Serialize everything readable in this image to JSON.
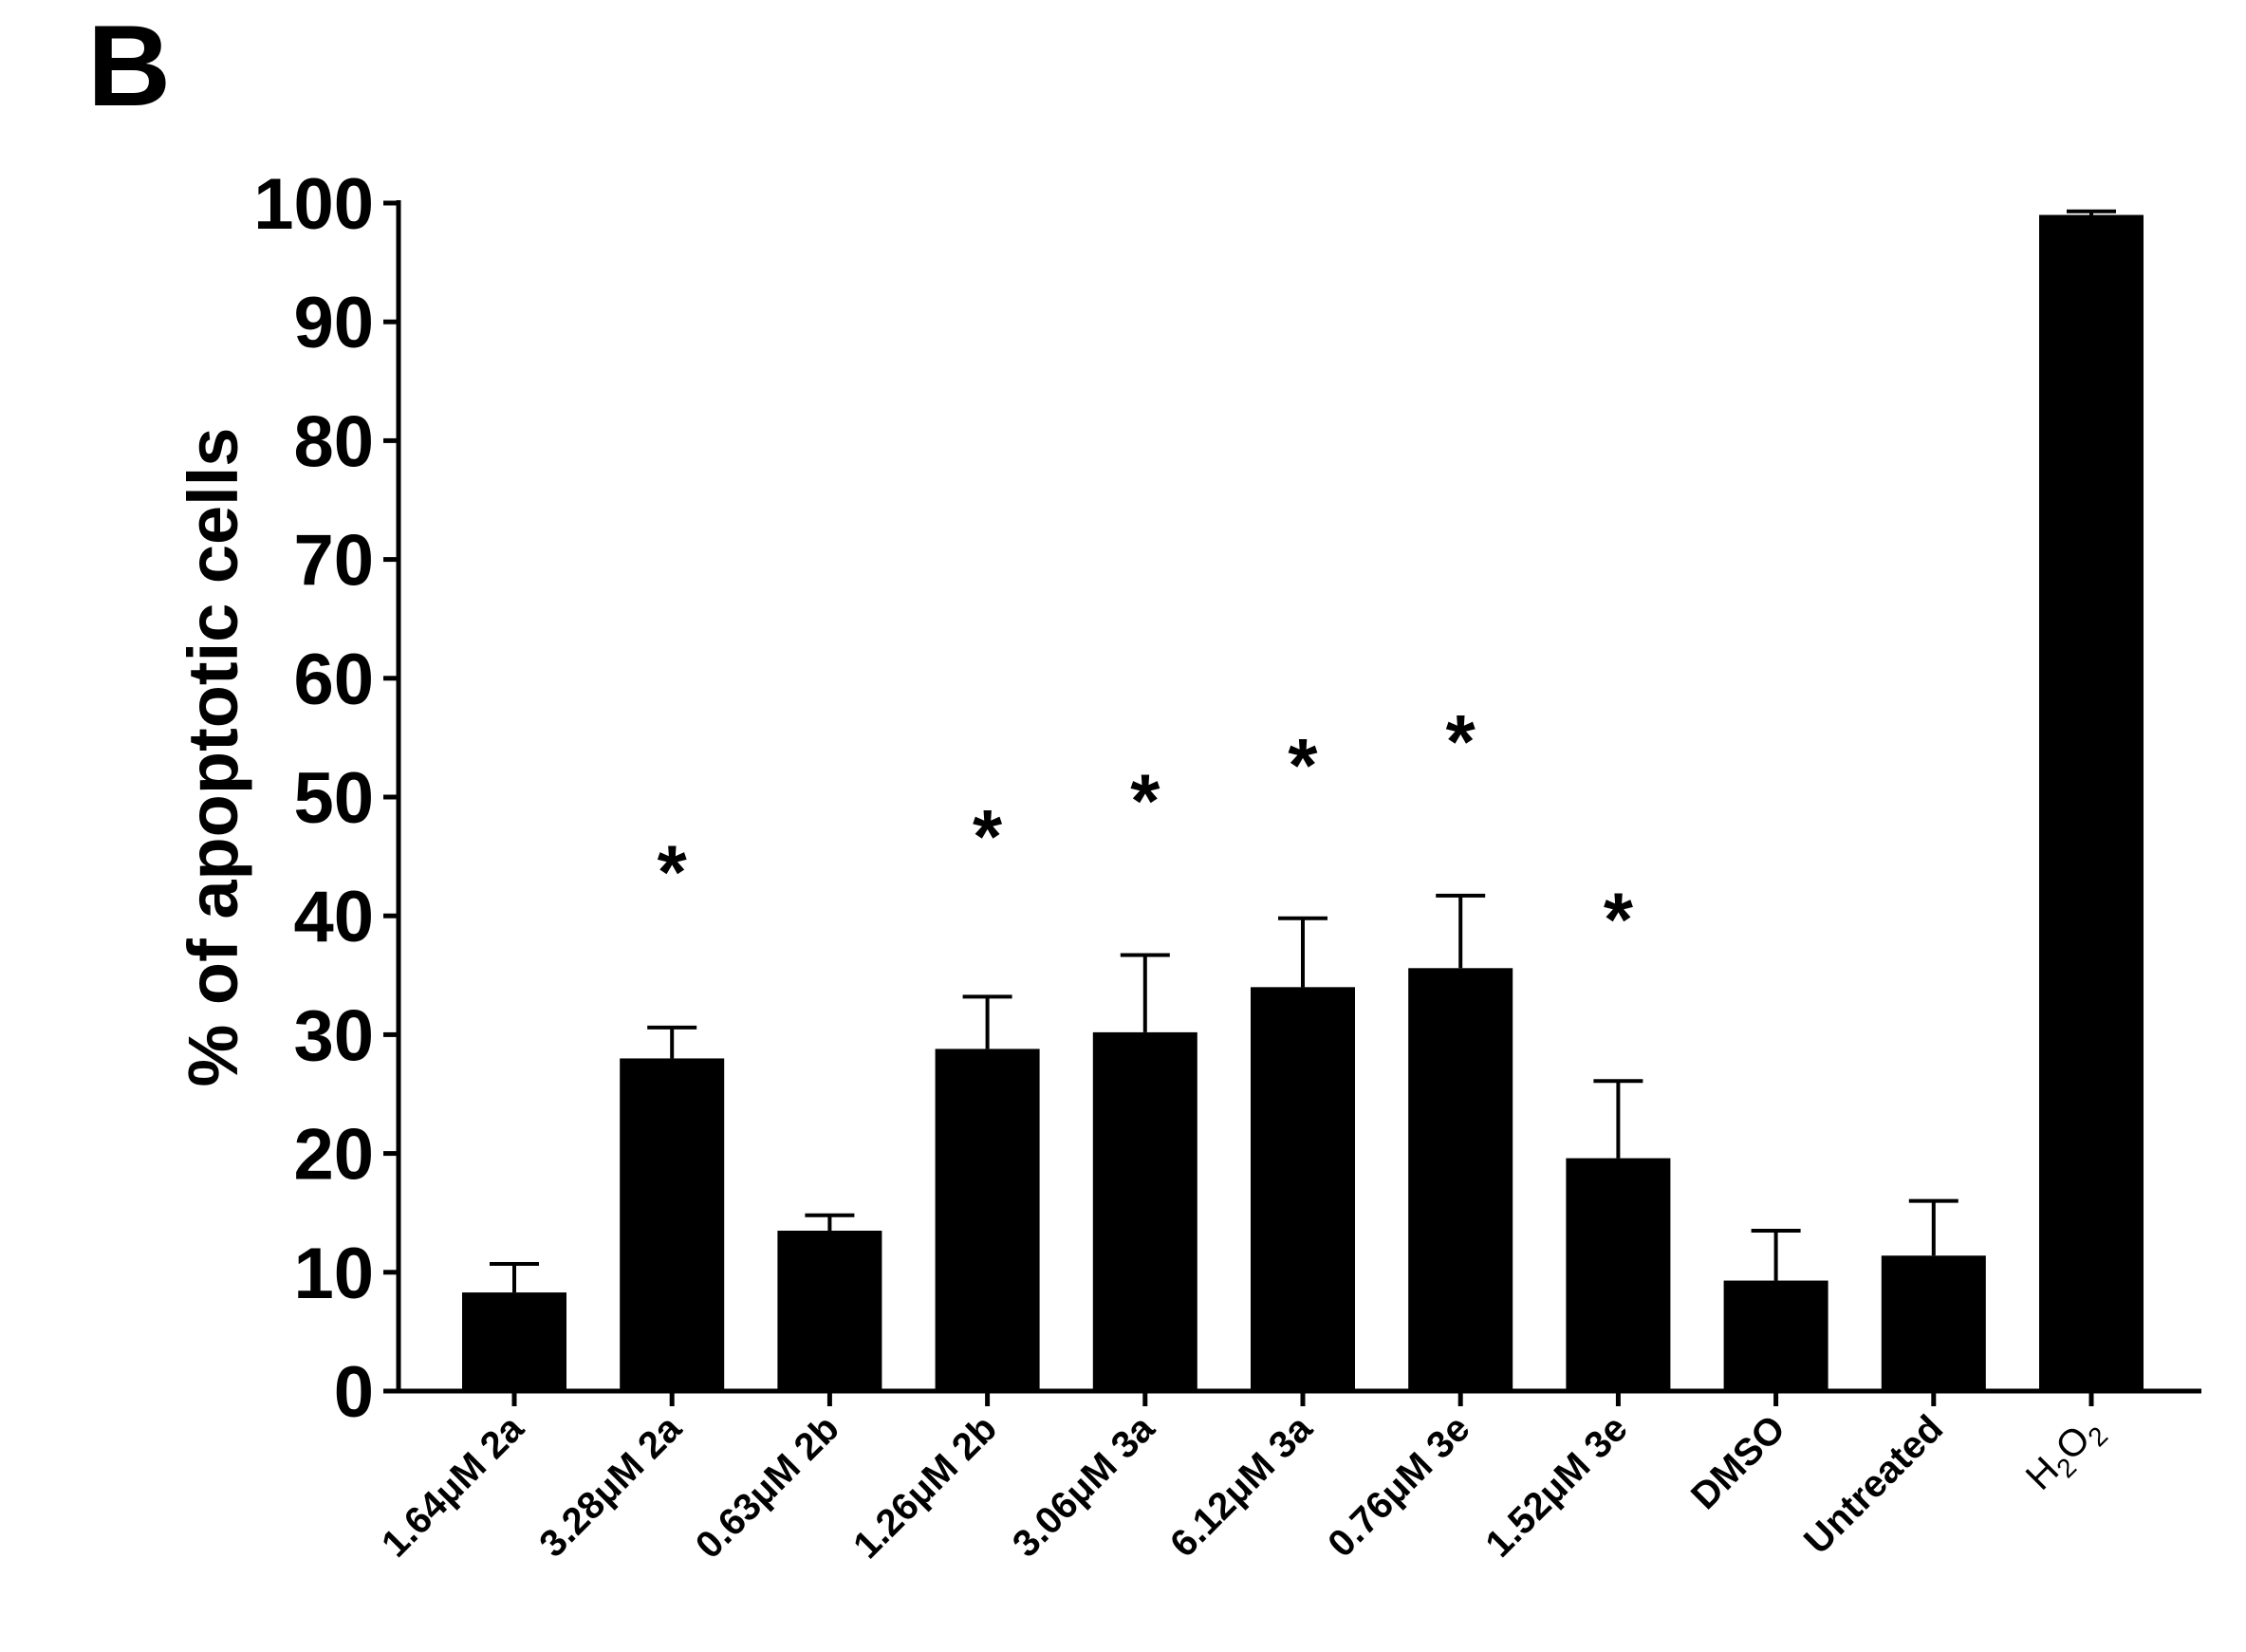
{
  "panel_label": "B",
  "chart_data": {
    "type": "bar",
    "title": "",
    "xlabel": "",
    "ylabel": "% of apoptotic cells",
    "ylim": [
      0,
      100
    ],
    "yticks": [
      0,
      10,
      20,
      30,
      40,
      50,
      60,
      70,
      80,
      90,
      100
    ],
    "grid": false,
    "legend": "none",
    "bar_color": "#000000",
    "categories": [
      {
        "label": "1.64μM 2a"
      },
      {
        "label": "3.28μM 2a"
      },
      {
        "label": "0.63μM 2b"
      },
      {
        "label": "1.26μM 2b"
      },
      {
        "label": "3.06μM 3a"
      },
      {
        "label": "6.12μM 3a"
      },
      {
        "label": "0.76μM 3e"
      },
      {
        "label": "1.52μM 3e"
      },
      {
        "label": "DMSO"
      },
      {
        "label": "Untreated"
      },
      {
        "label": "H2O2",
        "base": "H",
        "sub1": "2",
        "mid": "O",
        "sub2": "2"
      }
    ],
    "values": [
      8.3,
      28.0,
      13.5,
      28.8,
      30.2,
      34.0,
      35.6,
      19.6,
      9.3,
      11.4,
      99.0
    ],
    "error_upper": [
      10.7,
      30.6,
      14.8,
      33.2,
      36.7,
      39.8,
      41.7,
      26.1,
      13.5,
      16.0,
      99.3
    ],
    "annotations": [
      "",
      "*",
      "",
      "*",
      "*",
      "*",
      "*",
      "*",
      "",
      "",
      ""
    ],
    "annotation_y": [
      0,
      45,
      0,
      48,
      51,
      54,
      56,
      41,
      0,
      0,
      0
    ]
  }
}
